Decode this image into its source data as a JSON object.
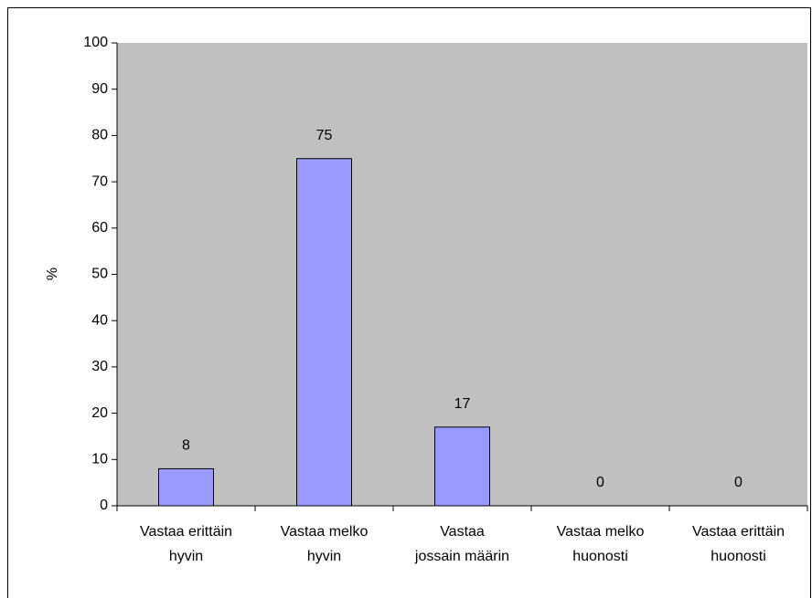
{
  "chart_data": {
    "type": "bar",
    "y_label": "%",
    "categories": [
      [
        "Vastaa erittäin",
        "hyvin"
      ],
      [
        "Vastaa melko",
        "hyvin"
      ],
      [
        "Vastaa",
        "jossain määrin"
      ],
      [
        "Vastaa melko",
        "huonosti"
      ],
      [
        "Vastaa erittäin",
        "huonosti"
      ]
    ],
    "values": [
      8,
      75,
      17,
      0,
      0
    ],
    "color": "#9999ff",
    "plot_background": "#c0c0c0",
    "ylim": [
      0,
      100
    ],
    "yticks": [
      0,
      10,
      20,
      30,
      40,
      50,
      60,
      70,
      80,
      90,
      100
    ]
  }
}
